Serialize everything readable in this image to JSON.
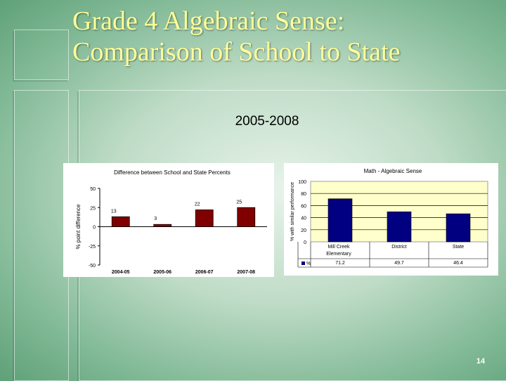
{
  "slide": {
    "title_line1": "Grade 4 Algebraic Sense:",
    "title_line2": "Comparison of School to State",
    "subtitle": "2005-2008",
    "page_number": "14"
  },
  "colors": {
    "title": "#ffff99",
    "left_bar": "#800000",
    "right_bar": "#000080",
    "plot_bg": "#ffffcc"
  },
  "chart_data": [
    {
      "type": "bar",
      "title": "Difference between School and State Percents",
      "xlabel": "",
      "ylabel": "% point difference",
      "categories": [
        "2004-05",
        "2005-06",
        "2006-07",
        "2007-08"
      ],
      "values": [
        13,
        3,
        22,
        25
      ],
      "data_labels": [
        "13",
        "3",
        "22",
        "25"
      ],
      "ylim": [
        -50,
        50
      ],
      "yticks": [
        -50,
        -25,
        0,
        25,
        50
      ],
      "ytick_labels": [
        "-50",
        "-25",
        "0",
        "25",
        "50"
      ],
      "grid": false
    },
    {
      "type": "bar",
      "title": "Math - Algebraic Sense",
      "xlabel": "",
      "ylabel": "% with similar performance",
      "categories": [
        "Mill Creek Elementary",
        "District",
        "State"
      ],
      "category_lines": [
        [
          "Mill Creek",
          "Elementary"
        ],
        [
          "District"
        ],
        [
          "State"
        ]
      ],
      "series": [
        {
          "name": "%",
          "values": [
            71.2,
            49.7,
            46.4
          ]
        }
      ],
      "table_values": [
        "71.2",
        "49.7",
        "46.4"
      ],
      "ylim": [
        0,
        100
      ],
      "yticks": [
        0,
        20,
        40,
        60,
        80,
        100
      ],
      "ytick_labels": [
        "0",
        "20",
        "40",
        "60",
        "80",
        "100"
      ],
      "grid": true
    }
  ]
}
